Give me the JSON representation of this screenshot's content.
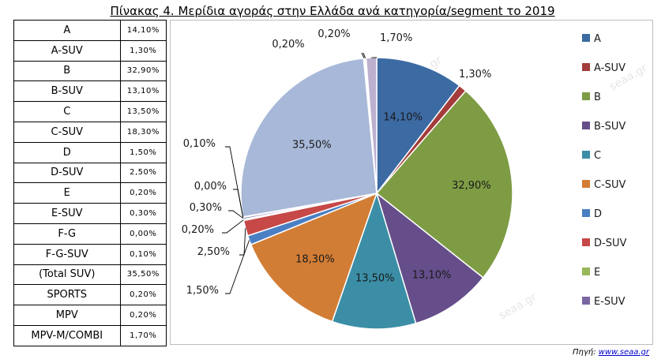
{
  "title": "Πίνακας 4. Μερίδια αγοράς στην Ελλάδα ανά κατηγορία/segment το 2019",
  "table": [
    {
      "label": "A",
      "value": "14,10%"
    },
    {
      "label": "A-SUV",
      "value": "1,30%"
    },
    {
      "label": "B",
      "value": "32,90%"
    },
    {
      "label": "B-SUV",
      "value": "13,10%"
    },
    {
      "label": "C",
      "value": "13,50%"
    },
    {
      "label": "C-SUV",
      "value": "18,30%"
    },
    {
      "label": "D",
      "value": "1,50%"
    },
    {
      "label": "D-SUV",
      "value": "2,50%"
    },
    {
      "label": "E",
      "value": "0,20%"
    },
    {
      "label": "E-SUV",
      "value": "0,30%"
    },
    {
      "label": "F-G",
      "value": "0,00%"
    },
    {
      "label": "F-G-SUV",
      "value": "0,10%"
    },
    {
      "label": "(Total SUV)",
      "value": "35,50%"
    },
    {
      "label": "SPORTS",
      "value": "0,20%"
    },
    {
      "label": "MPV",
      "value": "0,20%"
    },
    {
      "label": "MPV-M/COMBI",
      "value": "1,70%"
    }
  ],
  "chart_data": {
    "type": "pie",
    "title": "",
    "start_angle_deg": 0,
    "direction": "clockwise",
    "slices": [
      {
        "category": "A",
        "value": 14.1,
        "label": "14,10%",
        "color": "#3c6aa3"
      },
      {
        "category": "A-SUV",
        "value": 1.3,
        "label": "1,30%",
        "color": "#a33c3a"
      },
      {
        "category": "B",
        "value": 32.9,
        "label": "32,90%",
        "color": "#7e9c44"
      },
      {
        "category": "B-SUV",
        "value": 13.1,
        "label": "13,10%",
        "color": "#654e8a"
      },
      {
        "category": "C",
        "value": 13.5,
        "label": "13,50%",
        "color": "#3b8ea6"
      },
      {
        "category": "C-SUV",
        "value": 18.3,
        "label": "18,30%",
        "color": "#d27d35"
      },
      {
        "category": "D",
        "value": 1.5,
        "label": "1,50%",
        "color": "#4a7fc3"
      },
      {
        "category": "D-SUV",
        "value": 2.5,
        "label": "2,50%",
        "color": "#c64847"
      },
      {
        "category": "E",
        "value": 0.2,
        "label": "0,20%",
        "color": "#97b85a"
      },
      {
        "category": "E-SUV",
        "value": 0.3,
        "label": "0,30%",
        "color": "#7a66a2"
      },
      {
        "category": "F-G",
        "value": 0.0,
        "label": "0,00%",
        "color": "#44a2bd"
      },
      {
        "category": "F-G-SUV",
        "value": 0.1,
        "label": "0,10%",
        "color": "#e69845"
      },
      {
        "category": "(Total SUV)",
        "value": 35.5,
        "label": "35,50%",
        "color": "#a7b8d8"
      },
      {
        "category": "SPORTS",
        "value": 0.2,
        "label": "0,20%",
        "color": "#d5a7a6"
      },
      {
        "category": "MPV",
        "value": 0.2,
        "label": "0,20%",
        "color": "#c7d6a5"
      },
      {
        "category": "MPV-M/COMBI",
        "value": 1.7,
        "label": "1,70%",
        "color": "#bcb0cf"
      }
    ],
    "legend": {
      "placement": "right",
      "entries": [
        "A",
        "A-SUV",
        "B",
        "B-SUV",
        "C",
        "C-SUV",
        "D",
        "D-SUV",
        "E",
        "E-SUV"
      ]
    }
  },
  "source": {
    "prefix": "Πηγή: ",
    "link": "www.seaa.gr"
  }
}
